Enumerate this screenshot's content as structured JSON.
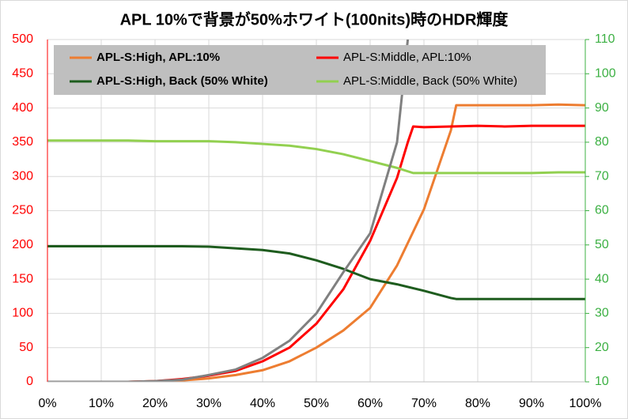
{
  "chart_data": {
    "type": "line",
    "title": "APL 10%で背景が50%ホワイト(100nits)時のHDR輝度",
    "xlim": [
      0,
      100
    ],
    "xticks": [
      {
        "value": 0,
        "label": "0%"
      },
      {
        "value": 10,
        "label": "10%"
      },
      {
        "value": 20,
        "label": "20%"
      },
      {
        "value": 30,
        "label": "30%"
      },
      {
        "value": 40,
        "label": "40%"
      },
      {
        "value": 50,
        "label": "50%"
      },
      {
        "value": 60,
        "label": "60%"
      },
      {
        "value": 70,
        "label": "70%"
      },
      {
        "value": 80,
        "label": "80%"
      },
      {
        "value": 90,
        "label": "90%"
      },
      {
        "value": 100,
        "label": "100%"
      }
    ],
    "ylim": [
      0,
      500
    ],
    "yticks": [
      0,
      50,
      100,
      150,
      200,
      250,
      300,
      350,
      400,
      450,
      500
    ],
    "y_color": "#ff0000",
    "y2lim": [
      10,
      110
    ],
    "y2ticks": [
      10,
      20,
      30,
      40,
      50,
      60,
      70,
      80,
      90,
      100,
      110
    ],
    "y2_color": "#3cb043",
    "grid": true,
    "legend": "top",
    "series": [
      {
        "name": "APL-S:High, APL:10%",
        "color": "#ed7d31",
        "x": [
          0,
          5,
          10,
          15,
          20,
          25,
          30,
          35,
          40,
          45,
          50,
          55,
          60,
          65,
          70,
          75,
          76,
          80,
          85,
          90,
          95,
          100
        ],
        "values": [
          0,
          0,
          0,
          0,
          1,
          2,
          5,
          10,
          17,
          30,
          50,
          75,
          108,
          170,
          252,
          367,
          404,
          404,
          404,
          404,
          405,
          404
        ]
      },
      {
        "name": "APL-S:Middle, APL:10%",
        "color": "#ff0000",
        "x": [
          0,
          5,
          10,
          15,
          20,
          25,
          30,
          35,
          40,
          45,
          50,
          55,
          60,
          65,
          67,
          68,
          70,
          75,
          80,
          85,
          90,
          95,
          100
        ],
        "values": [
          0,
          0,
          0,
          0,
          1,
          4,
          9,
          16,
          30,
          50,
          85,
          135,
          206,
          298,
          350,
          373,
          372,
          373,
          374,
          373,
          374,
          374,
          374
        ]
      },
      {
        "name": "APL-S:High, Back (50% White)",
        "color": "#1e5c1e",
        "axis": "y2",
        "x": [
          0,
          5,
          10,
          15,
          20,
          25,
          30,
          35,
          40,
          45,
          50,
          55,
          60,
          65,
          70,
          75,
          76,
          80,
          85,
          90,
          95,
          100
        ],
        "values": [
          49.6,
          49.6,
          49.6,
          49.6,
          49.6,
          49.6,
          49.5,
          49,
          48.5,
          47.5,
          45.5,
          43,
          40,
          38.5,
          36.6,
          34.5,
          34.2,
          34.2,
          34.2,
          34.2,
          34.2,
          34.2
        ]
      },
      {
        "name": "APL-S:Middle, Back (50% White)",
        "color": "#92d050",
        "axis": "y2",
        "x": [
          0,
          5,
          10,
          15,
          20,
          25,
          30,
          35,
          40,
          45,
          50,
          55,
          60,
          65,
          68,
          70,
          75,
          80,
          85,
          90,
          95,
          100
        ],
        "values": [
          80.5,
          80.5,
          80.5,
          80.5,
          80.3,
          80.3,
          80.3,
          80,
          79.5,
          79,
          78,
          76.5,
          74.5,
          72.5,
          71,
          71,
          71,
          71,
          71,
          71,
          71.2,
          71.2
        ]
      },
      {
        "color": "#808080",
        "x": [
          0,
          5,
          10,
          15,
          20,
          25,
          30,
          35,
          40,
          45,
          50,
          55,
          60,
          65,
          67
        ],
        "values": [
          0,
          0,
          0,
          0,
          1,
          3,
          10,
          18,
          35,
          60,
          100,
          160,
          217,
          350,
          500
        ]
      }
    ]
  }
}
